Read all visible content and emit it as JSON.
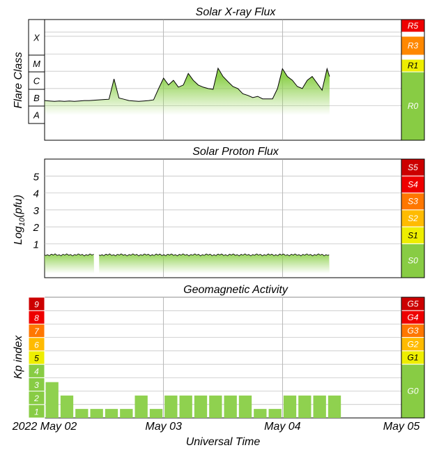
{
  "chart_data": [
    {
      "type": "area",
      "title": "Solar X-ray Flux",
      "ylabel": "Flare Class",
      "y_scale": "log",
      "ylim": [
        -9,
        -2
      ],
      "class_labels": [
        "X",
        "M",
        "C",
        "B",
        "A"
      ],
      "scale_labels": [
        "R5",
        "R3",
        "R1",
        "R0"
      ],
      "xlim": [
        "2022-05-02 00:00",
        "2022-05-05 00:00"
      ],
      "series": [
        {
          "x": [
            "2022-05-02 00:00",
            "2022-05-02 01:00",
            "2022-05-02 02:00",
            "2022-05-02 03:00",
            "2022-05-02 04:00",
            "2022-05-02 05:00",
            "2022-05-02 06:00",
            "2022-05-02 07:00",
            "2022-05-02 08:00",
            "2022-05-02 09:00",
            "2022-05-02 10:00",
            "2022-05-02 11:00",
            "2022-05-02 12:00",
            "2022-05-02 13:00",
            "2022-05-02 14:00",
            "2022-05-02 15:00",
            "2022-05-02 16:00",
            "2022-05-02 17:00",
            "2022-05-02 18:00",
            "2022-05-02 19:00",
            "2022-05-02 20:00",
            "2022-05-02 21:00",
            "2022-05-02 22:00",
            "2022-05-02 23:00",
            "2022-05-03 00:00",
            "2022-05-03 01:00",
            "2022-05-03 02:00",
            "2022-05-03 03:00",
            "2022-05-03 04:00",
            "2022-05-03 05:00",
            "2022-05-03 06:00",
            "2022-05-03 07:00",
            "2022-05-03 08:00",
            "2022-05-03 09:00",
            "2022-05-03 10:00",
            "2022-05-03 11:00",
            "2022-05-03 12:00",
            "2022-05-03 13:00",
            "2022-05-03 14:00",
            "2022-05-03 15:00",
            "2022-05-03 16:00",
            "2022-05-03 17:00",
            "2022-05-03 18:00",
            "2022-05-03 19:00",
            "2022-05-03 20:00",
            "2022-05-03 21:00",
            "2022-05-03 22:00",
            "2022-05-03 23:00",
            "2022-05-04 00:00",
            "2022-05-04 01:00",
            "2022-05-04 02:00",
            "2022-05-04 03:00",
            "2022-05-04 04:00",
            "2022-05-04 05:00",
            "2022-05-04 06:00",
            "2022-05-04 07:00",
            "2022-05-04 08:00",
            "2022-05-04 09:00",
            "2022-05-04 09:30"
          ],
          "y": [
            2e-07,
            1.9e-07,
            1.8e-07,
            1.9e-07,
            1.8e-07,
            1.9e-07,
            1.8e-07,
            1.9e-07,
            2e-07,
            2e-07,
            2.1e-07,
            2.2e-07,
            2.3e-07,
            2.4e-07,
            3.6e-06,
            2.8e-07,
            2.4e-07,
            2e-07,
            1.9e-07,
            1.8e-07,
            1.9e-07,
            2e-07,
            2.2e-07,
            1e-06,
            4e-06,
            1.6e-06,
            3e-06,
            1.2e-06,
            1.6e-06,
            7.5e-06,
            3e-06,
            1.6e-06,
            1.2e-06,
            1e-06,
            9e-07,
            1.5e-05,
            5e-06,
            2.5e-06,
            1.3e-06,
            1e-06,
            5e-07,
            4e-07,
            3e-07,
            3.5e-07,
            2.5e-07,
            2.5e-07,
            2.5e-07,
            1e-06,
            1.4e-05,
            5e-06,
            3e-06,
            1.3e-06,
            1e-06,
            3e-06,
            5e-06,
            2e-06,
            8e-07,
            1.4e-05,
            5e-06
          ]
        }
      ]
    },
    {
      "type": "area",
      "title": "Solar Proton Flux",
      "ylabel": "Log10(pfu)",
      "ylim": [
        -1,
        6
      ],
      "yticks": [
        "1",
        "2",
        "3",
        "4",
        "5"
      ],
      "scale_labels": [
        "S5",
        "S4",
        "S3",
        "S2",
        "S1",
        "S0"
      ],
      "xlim": [
        "2022-05-02 00:00",
        "2022-05-05 00:00"
      ],
      "series": [
        {
          "x": [
            "2022-05-02 00:00",
            "2022-05-02 12:00",
            "2022-05-03 00:00",
            "2022-05-03 12:00",
            "2022-05-04 00:00",
            "2022-05-04 09:30"
          ],
          "y": [
            0.35,
            0.35,
            0.35,
            0.35,
            0.35,
            0.35
          ],
          "gap": [
            "2022-05-02 10:00",
            "2022-05-02 11:00"
          ]
        }
      ]
    },
    {
      "type": "bar",
      "title": "Geomagnetic Activity",
      "ylabel": "Kp index",
      "xlabel": "Universal Time",
      "ylim": [
        0,
        9
      ],
      "yticks": [
        "1",
        "2",
        "3",
        "4",
        "5",
        "6",
        "7",
        "8",
        "9"
      ],
      "scale_labels": [
        "G5",
        "G4",
        "G3",
        "G2",
        "G1",
        "G0"
      ],
      "categories": [
        "2022-05-02 00:00",
        "2022-05-02 03:00",
        "2022-05-02 06:00",
        "2022-05-02 09:00",
        "2022-05-02 12:00",
        "2022-05-02 15:00",
        "2022-05-02 18:00",
        "2022-05-02 21:00",
        "2022-05-03 00:00",
        "2022-05-03 03:00",
        "2022-05-03 06:00",
        "2022-05-03 09:00",
        "2022-05-03 12:00",
        "2022-05-03 15:00",
        "2022-05-03 18:00",
        "2022-05-03 21:00",
        "2022-05-04 00:00",
        "2022-05-04 03:00",
        "2022-05-04 06:00",
        "2022-05-04 09:00"
      ],
      "values": [
        2.67,
        1.67,
        0.67,
        0.67,
        0.67,
        0.67,
        1.67,
        0.67,
        1.67,
        1.67,
        1.67,
        1.67,
        1.67,
        1.67,
        0.67,
        0.67,
        1.67,
        1.67,
        1.67,
        1.67
      ],
      "x_tick_labels": [
        "2022 May 02",
        "May 03",
        "May 04",
        "May 05"
      ]
    }
  ],
  "colors": {
    "band": [
      "#cc0000",
      "#ee0000",
      "#ff6600",
      "#ffbb00",
      "#eeee00",
      "#88cc44"
    ],
    "fill": "#8fd14f",
    "frame": "#000000",
    "grid": "#999999"
  }
}
